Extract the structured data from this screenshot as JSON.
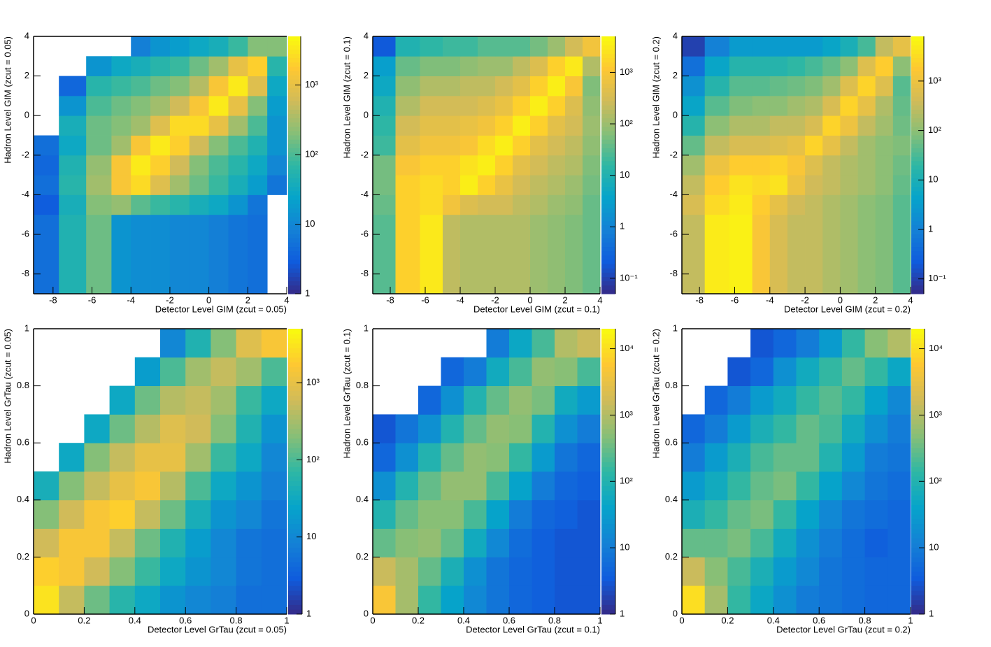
{
  "chart_data": [
    {
      "type": "heatmap",
      "x_label": "Detector Level GIM (zcut = 0.05)",
      "y_label": "Hadron Level GIM (zcut = 0.05)",
      "xbins": [
        -9,
        -7.7,
        -6.3,
        -5,
        -4,
        -3,
        -2,
        -1,
        0,
        1,
        2,
        3,
        4
      ],
      "ybins": [
        -9,
        -5,
        -4,
        -3,
        -2,
        -1,
        0,
        1,
        2,
        3,
        4
      ],
      "values": [
        [
          5,
          50,
          150,
          15,
          12,
          12,
          10,
          10,
          8,
          6,
          5,
          null
        ],
        [
          3,
          40,
          200,
          250,
          120,
          80,
          60,
          40,
          30,
          15,
          6,
          null
        ],
        [
          5,
          60,
          300,
          1500,
          2500,
          800,
          300,
          150,
          80,
          40,
          20,
          6
        ],
        [
          4,
          50,
          250,
          1500,
          3500,
          2000,
          600,
          200,
          100,
          60,
          30,
          10
        ],
        [
          5,
          30,
          150,
          300,
          1500,
          3500,
          2000,
          600,
          200,
          100,
          50,
          15
        ],
        [
          null,
          40,
          150,
          200,
          300,
          800,
          2500,
          2500,
          1000,
          300,
          100,
          15
        ],
        [
          null,
          15,
          100,
          150,
          200,
          300,
          600,
          1500,
          3500,
          1000,
          200,
          20
        ],
        [
          null,
          4,
          60,
          80,
          100,
          150,
          200,
          400,
          1500,
          3500,
          800,
          30
        ],
        [
          null,
          null,
          15,
          30,
          40,
          60,
          80,
          150,
          300,
          1000,
          2000,
          60
        ],
        [
          null,
          null,
          null,
          null,
          8,
          15,
          20,
          30,
          40,
          80,
          200,
          200
        ]
      ],
      "xlim": [
        -9,
        4
      ],
      "ylim": [
        -9,
        4
      ],
      "xticks": [
        -8,
        -6,
        -4,
        -2,
        0,
        2,
        4
      ],
      "yticks": [
        -8,
        -6,
        -4,
        -2,
        0,
        2,
        4
      ],
      "zlim": [
        1,
        5000
      ],
      "zticks": [
        1,
        10,
        {
          "value": 100,
          "label": "10²"
        },
        {
          "value": 1000,
          "label": "10³"
        }
      ],
      "log_z": true,
      "colormap": [
        "#352a87",
        "#0f5cdd",
        "#1481d6",
        "#06a4ca",
        "#2eb7a4",
        "#87bf77",
        "#d1bb59",
        "#fec832",
        "#f9fb0e"
      ]
    },
    {
      "type": "heatmap",
      "x_label": "Detector Level GIM (zcut = 0.1)",
      "y_label": "Hadron Level GIM (zcut = 0.1)",
      "xbins": [
        -9,
        -7.7,
        -6.3,
        -5,
        -4,
        -3,
        -2,
        -1,
        0,
        1,
        2,
        3,
        4
      ],
      "ybins": [
        -9,
        -5,
        -4,
        -3,
        -2,
        -1,
        0,
        1,
        2,
        3,
        4
      ],
      "values": [
        [
          30,
          1500,
          3000,
          200,
          150,
          150,
          150,
          150,
          100,
          80,
          60,
          40
        ],
        [
          40,
          1500,
          2000,
          800,
          400,
          300,
          300,
          200,
          150,
          100,
          80,
          40
        ],
        [
          50,
          1500,
          2000,
          1500,
          3500,
          1500,
          600,
          300,
          200,
          150,
          100,
          50
        ],
        [
          50,
          1000,
          1500,
          1500,
          2500,
          3500,
          1500,
          500,
          300,
          200,
          150,
          60
        ],
        [
          20,
          500,
          800,
          800,
          1000,
          2000,
          3500,
          1500,
          500,
          300,
          200,
          80
        ],
        [
          15,
          300,
          500,
          500,
          600,
          800,
          1500,
          3500,
          1500,
          500,
          300,
          100
        ],
        [
          10,
          150,
          300,
          300,
          300,
          400,
          600,
          1500,
          3500,
          1500,
          400,
          80
        ],
        [
          5,
          80,
          150,
          150,
          200,
          200,
          300,
          500,
          1500,
          3500,
          1000,
          60
        ],
        [
          3,
          40,
          60,
          60,
          80,
          100,
          100,
          200,
          400,
          1500,
          3000,
          150
        ],
        [
          0.2,
          10,
          15,
          20,
          20,
          30,
          30,
          30,
          50,
          100,
          300,
          800
        ]
      ],
      "xlim": [
        -9,
        4
      ],
      "ylim": [
        -9,
        4
      ],
      "xticks": [
        -8,
        -6,
        -4,
        -2,
        0,
        2,
        4
      ],
      "yticks": [
        -8,
        -6,
        -4,
        -2,
        0,
        2,
        4
      ],
      "zlim": [
        0.05,
        5000
      ],
      "zticks": [
        {
          "value": 0.1,
          "label": "10⁻¹"
        },
        1,
        10,
        {
          "value": 100,
          "label": "10²"
        },
        {
          "value": 1000,
          "label": "10³"
        }
      ],
      "log_z": true,
      "colormap": [
        "#352a87",
        "#0f5cdd",
        "#1481d6",
        "#06a4ca",
        "#2eb7a4",
        "#87bf77",
        "#d1bb59",
        "#fec832",
        "#f9fb0e"
      ]
    },
    {
      "type": "heatmap",
      "x_label": "Detector Level GIM (zcut = 0.2)",
      "y_label": "Hadron Level GIM (zcut = 0.2)",
      "xbins": [
        -9,
        -7.7,
        -6.3,
        -5,
        -4,
        -3,
        -2,
        -1,
        0,
        1,
        2,
        3,
        4
      ],
      "ybins": [
        -9,
        -5,
        -4,
        -3,
        -2,
        -1,
        0,
        1,
        2,
        3,
        4
      ],
      "values": [
        [
          300,
          5000,
          6000,
          1500,
          500,
          300,
          300,
          200,
          150,
          100,
          80,
          40
        ],
        [
          500,
          3000,
          5000,
          2000,
          800,
          400,
          300,
          200,
          150,
          100,
          80,
          40
        ],
        [
          300,
          2000,
          4000,
          3000,
          4000,
          1000,
          400,
          300,
          200,
          150,
          100,
          50
        ],
        [
          150,
          1000,
          2000,
          2000,
          2500,
          1500,
          600,
          300,
          200,
          150,
          100,
          60
        ],
        [
          50,
          300,
          500,
          500,
          600,
          800,
          2500,
          800,
          300,
          150,
          100,
          80
        ],
        [
          15,
          100,
          200,
          200,
          300,
          300,
          500,
          2500,
          1000,
          300,
          150,
          60
        ],
        [
          5,
          40,
          80,
          100,
          100,
          150,
          200,
          500,
          2500,
          800,
          200,
          50
        ],
        [
          2,
          15,
          40,
          40,
          50,
          60,
          80,
          150,
          600,
          2500,
          600,
          40
        ],
        [
          0.5,
          5,
          15,
          15,
          15,
          20,
          30,
          50,
          100,
          600,
          2000,
          100
        ],
        [
          0.1,
          1,
          3,
          3,
          3,
          3,
          3,
          5,
          10,
          30,
          300,
          800
        ]
      ],
      "xlim": [
        -9,
        4
      ],
      "ylim": [
        -9,
        4
      ],
      "xticks": [
        -8,
        -6,
        -4,
        -2,
        0,
        2,
        4
      ],
      "yticks": [
        -8,
        -6,
        -4,
        -2,
        0,
        2,
        4
      ],
      "zlim": [
        0.05,
        8000
      ],
      "zticks": [
        {
          "value": 0.1,
          "label": "10⁻¹"
        },
        1,
        10,
        {
          "value": 100,
          "label": "10²"
        },
        {
          "value": 1000,
          "label": "10³"
        }
      ],
      "log_z": true,
      "colormap": [
        "#352a87",
        "#0f5cdd",
        "#1481d6",
        "#06a4ca",
        "#2eb7a4",
        "#87bf77",
        "#d1bb59",
        "#fec832",
        "#f9fb0e"
      ]
    },
    {
      "type": "heatmap",
      "x_label": "Detector Level GrTau (zcut = 0.05)",
      "y_label": "Hadron Level GrTau (zcut = 0.05)",
      "xbins": [
        0,
        0.1,
        0.2,
        0.3,
        0.4,
        0.5,
        0.6,
        0.7,
        0.8,
        0.9,
        1
      ],
      "ybins": [
        0,
        0.1,
        0.2,
        0.3,
        0.4,
        0.5,
        0.6,
        0.7,
        0.8,
        0.9,
        1
      ],
      "values": [
        [
          3000,
          500,
          150,
          60,
          30,
          15,
          10,
          8,
          5,
          5
        ],
        [
          2000,
          1500,
          600,
          200,
          80,
          30,
          15,
          10,
          6,
          5
        ],
        [
          600,
          1500,
          1500,
          500,
          150,
          50,
          20,
          10,
          6,
          5
        ],
        [
          200,
          600,
          1500,
          2000,
          500,
          150,
          40,
          15,
          10,
          6
        ],
        [
          40,
          200,
          500,
          1000,
          1500,
          400,
          100,
          30,
          15,
          8
        ],
        [
          null,
          30,
          200,
          500,
          1000,
          1000,
          300,
          80,
          30,
          10
        ],
        [
          null,
          null,
          30,
          150,
          400,
          800,
          600,
          200,
          50,
          15
        ],
        [
          null,
          null,
          null,
          30,
          150,
          400,
          500,
          300,
          80,
          30
        ],
        [
          null,
          null,
          null,
          null,
          20,
          100,
          300,
          500,
          300,
          100
        ],
        [
          null,
          null,
          null,
          null,
          null,
          10,
          50,
          200,
          800,
          1500
        ]
      ],
      "xlim": [
        0,
        1
      ],
      "ylim": [
        0,
        1
      ],
      "xticks": [
        0,
        0.2,
        0.4,
        0.6,
        0.8,
        1
      ],
      "yticks": [
        0,
        0.2,
        0.4,
        0.6,
        0.8,
        1
      ],
      "zlim": [
        1,
        5000
      ],
      "zticks": [
        1,
        10,
        {
          "value": 100,
          "label": "10²"
        },
        {
          "value": 1000,
          "label": "10³"
        }
      ],
      "log_z": true,
      "colormap": [
        "#352a87",
        "#0f5cdd",
        "#1481d6",
        "#06a4ca",
        "#2eb7a4",
        "#87bf77",
        "#d1bb59",
        "#fec832",
        "#f9fb0e"
      ]
    },
    {
      "type": "heatmap",
      "x_label": "Detector Level GrTau (zcut = 0.1)",
      "y_label": "Hadron Level GrTau (zcut = 0.1)",
      "xbins": [
        0,
        0.1,
        0.2,
        0.3,
        0.4,
        0.5,
        0.6,
        0.7,
        0.8,
        0.9,
        1
      ],
      "ybins": [
        0,
        0.1,
        0.2,
        0.3,
        0.4,
        0.5,
        0.6,
        0.7,
        0.8,
        0.9,
        1
      ],
      "values": [
        [
          5000,
          800,
          150,
          40,
          15,
          8,
          5,
          4,
          3,
          3
        ],
        [
          1500,
          800,
          300,
          80,
          20,
          8,
          5,
          4,
          3,
          3
        ],
        [
          300,
          500,
          600,
          300,
          60,
          15,
          6,
          4,
          3,
          3
        ],
        [
          100,
          300,
          500,
          500,
          200,
          40,
          10,
          5,
          4,
          3
        ],
        [
          20,
          100,
          300,
          600,
          600,
          200,
          40,
          10,
          5,
          4
        ],
        [
          5,
          20,
          100,
          300,
          600,
          500,
          150,
          30,
          8,
          5
        ],
        [
          3,
          8,
          20,
          100,
          300,
          600,
          500,
          100,
          20,
          10
        ],
        [
          null,
          null,
          5,
          20,
          100,
          300,
          600,
          400,
          60,
          30
        ],
        [
          null,
          null,
          null,
          5,
          10,
          60,
          200,
          600,
          500,
          200
        ],
        [
          null,
          null,
          null,
          null,
          null,
          10,
          50,
          200,
          1000,
          1500
        ]
      ],
      "xlim": [
        0,
        1
      ],
      "ylim": [
        0,
        1
      ],
      "xticks": [
        0,
        0.2,
        0.4,
        0.6,
        0.8,
        1
      ],
      "yticks": [
        0,
        0.2,
        0.4,
        0.6,
        0.8,
        1
      ],
      "zlim": [
        1,
        20000
      ],
      "zticks": [
        1,
        10,
        {
          "value": 100,
          "label": "10²"
        },
        {
          "value": 1000,
          "label": "10³"
        },
        {
          "value": 10000,
          "label": "10⁴"
        }
      ],
      "log_z": true,
      "colormap": [
        "#352a87",
        "#0f5cdd",
        "#1481d6",
        "#06a4ca",
        "#2eb7a4",
        "#87bf77",
        "#d1bb59",
        "#fec832",
        "#f9fb0e"
      ]
    },
    {
      "type": "heatmap",
      "x_label": "Detector Level GrTau (zcut = 0.2)",
      "y_label": "Hadron Level GrTau (zcut = 0.2)",
      "xbins": [
        0,
        0.1,
        0.2,
        0.3,
        0.4,
        0.5,
        0.6,
        0.7,
        0.8,
        0.9,
        1
      ],
      "ybins": [
        0,
        0.1,
        0.2,
        0.3,
        0.4,
        0.5,
        0.6,
        0.7,
        0.8,
        0.9,
        1
      ],
      "values": [
        [
          10000,
          800,
          150,
          50,
          20,
          10,
          8,
          6,
          5,
          5
        ],
        [
          1500,
          500,
          200,
          80,
          30,
          15,
          8,
          6,
          5,
          5
        ],
        [
          300,
          300,
          400,
          200,
          60,
          20,
          10,
          6,
          4,
          5
        ],
        [
          80,
          150,
          300,
          400,
          150,
          40,
          15,
          8,
          6,
          5
        ],
        [
          30,
          60,
          150,
          300,
          400,
          150,
          40,
          15,
          8,
          6
        ],
        [
          10,
          30,
          80,
          200,
          300,
          300,
          100,
          30,
          10,
          8
        ],
        [
          5,
          10,
          30,
          80,
          150,
          300,
          200,
          60,
          20,
          10
        ],
        [
          null,
          5,
          10,
          30,
          60,
          150,
          250,
          150,
          40,
          15
        ],
        [
          null,
          null,
          3,
          5,
          20,
          60,
          150,
          300,
          150,
          50
        ],
        [
          null,
          null,
          null,
          3,
          5,
          10,
          30,
          150,
          500,
          1000
        ]
      ],
      "xlim": [
        0,
        1
      ],
      "ylim": [
        0,
        1
      ],
      "xticks": [
        0,
        0.2,
        0.4,
        0.6,
        0.8,
        1
      ],
      "yticks": [
        0,
        0.2,
        0.4,
        0.6,
        0.8,
        1
      ],
      "zlim": [
        1,
        20000
      ],
      "zticks": [
        1,
        10,
        {
          "value": 100,
          "label": "10²"
        },
        {
          "value": 1000,
          "label": "10³"
        },
        {
          "value": 10000,
          "label": "10⁴"
        }
      ],
      "log_z": true,
      "colormap": [
        "#352a87",
        "#0f5cdd",
        "#1481d6",
        "#06a4ca",
        "#2eb7a4",
        "#87bf77",
        "#d1bb59",
        "#fec832",
        "#f9fb0e"
      ]
    }
  ]
}
